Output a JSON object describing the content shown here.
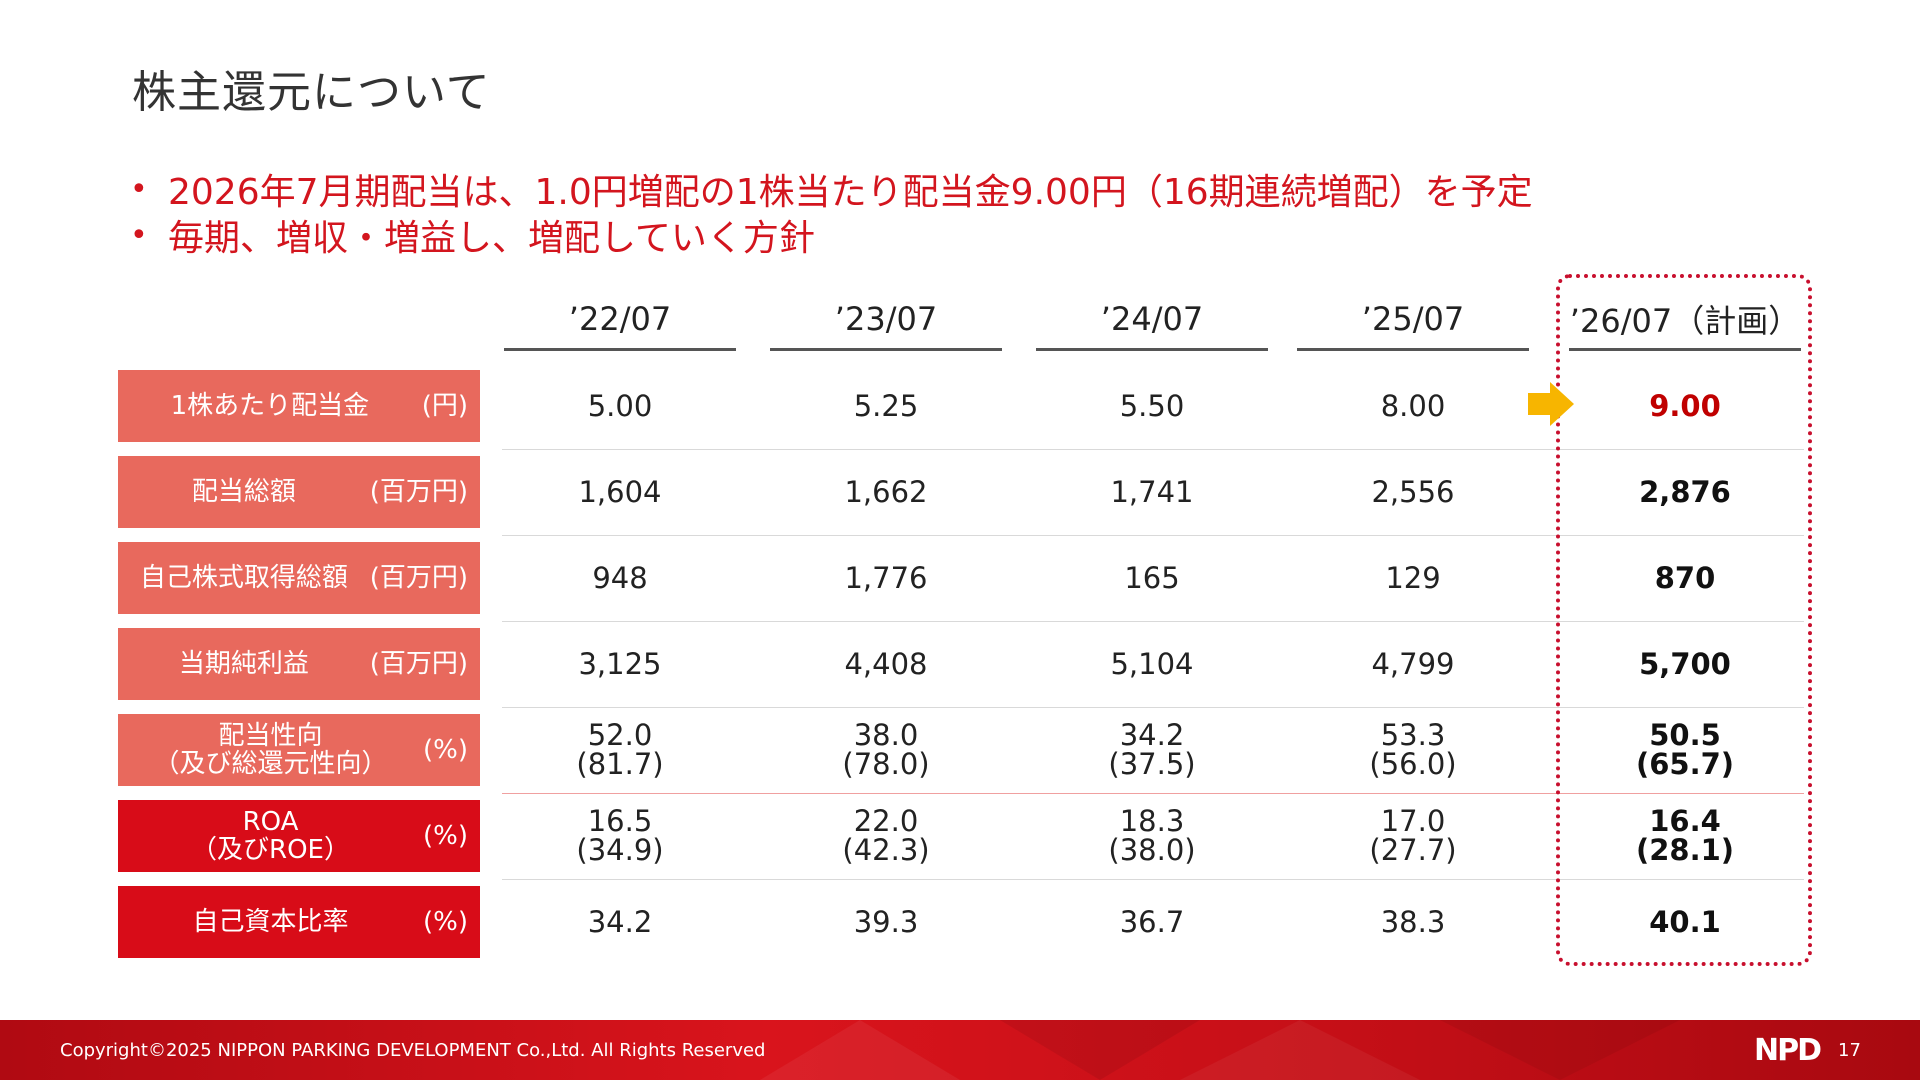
{
  "title": "株主還元について",
  "bullets": [
    "2026年7月期配当は、1.0円増配の1株当たり配当金9.00円（16期連続増配）を予定",
    "毎期、増収・増益し、増配していく方針"
  ],
  "bullet_symbol": "•",
  "columns": [
    "’22/07",
    "’23/07",
    "’24/07",
    "’25/07",
    "’26/07（計画）"
  ],
  "rows": [
    {
      "label": [
        "1株あたり配当金"
      ],
      "unit": "(円)",
      "style": "soft",
      "values": [
        [
          "5.00"
        ],
        [
          "5.25"
        ],
        [
          "5.50"
        ],
        [
          "8.00"
        ],
        [
          "9.00"
        ]
      ],
      "highlight": true
    },
    {
      "label": [
        "配当総額"
      ],
      "unit": "(百万円)",
      "style": "soft",
      "values": [
        [
          "1,604"
        ],
        [
          "1,662"
        ],
        [
          "1,741"
        ],
        [
          "2,556"
        ],
        [
          "2,876"
        ]
      ]
    },
    {
      "label": [
        "自己株式取得総額"
      ],
      "unit": "(百万円)",
      "style": "soft",
      "values": [
        [
          "948"
        ],
        [
          "1,776"
        ],
        [
          "165"
        ],
        [
          "129"
        ],
        [
          "870"
        ]
      ]
    },
    {
      "label": [
        "当期純利益"
      ],
      "unit": "(百万円)",
      "style": "soft",
      "values": [
        [
          "3,125"
        ],
        [
          "4,408"
        ],
        [
          "5,104"
        ],
        [
          "4,799"
        ],
        [
          "5,700"
        ]
      ]
    },
    {
      "label": [
        "配当性向",
        "（及び総還元性向）"
      ],
      "unit": "(%)",
      "style": "soft",
      "values": [
        [
          "52.0",
          "(81.7)"
        ],
        [
          "38.0",
          "(78.0)"
        ],
        [
          "34.2",
          "(37.5)"
        ],
        [
          "53.3",
          "(56.0)"
        ],
        [
          "50.5",
          "(65.7)"
        ]
      ]
    },
    {
      "label": [
        "ROA",
        "（及びROE）"
      ],
      "unit": "(%)",
      "style": "strong",
      "values": [
        [
          "16.5",
          "(34.9)"
        ],
        [
          "22.0",
          "(42.3)"
        ],
        [
          "18.3",
          "(38.0)"
        ],
        [
          "17.0",
          "(27.7)"
        ],
        [
          "16.4",
          "(28.1)"
        ]
      ]
    },
    {
      "label": [
        "自己資本比率"
      ],
      "unit": "(%)",
      "style": "strong",
      "values": [
        [
          "34.2"
        ],
        [
          "39.3"
        ],
        [
          "36.7"
        ],
        [
          "38.3"
        ],
        [
          "40.1"
        ]
      ]
    }
  ],
  "icons": {
    "arrow": "right-arrow-icon"
  },
  "colors": {
    "accent": "#d3151e",
    "label_soft": "#e8695d",
    "label_strong": "#d80c18",
    "arrow": "#f7b500"
  },
  "footer": {
    "copyright": "Copyright©2025  NIPPON PARKING DEVELOPMENT Co.,Ltd.  All Rights Reserved",
    "logo": "NPD",
    "page": "17"
  }
}
